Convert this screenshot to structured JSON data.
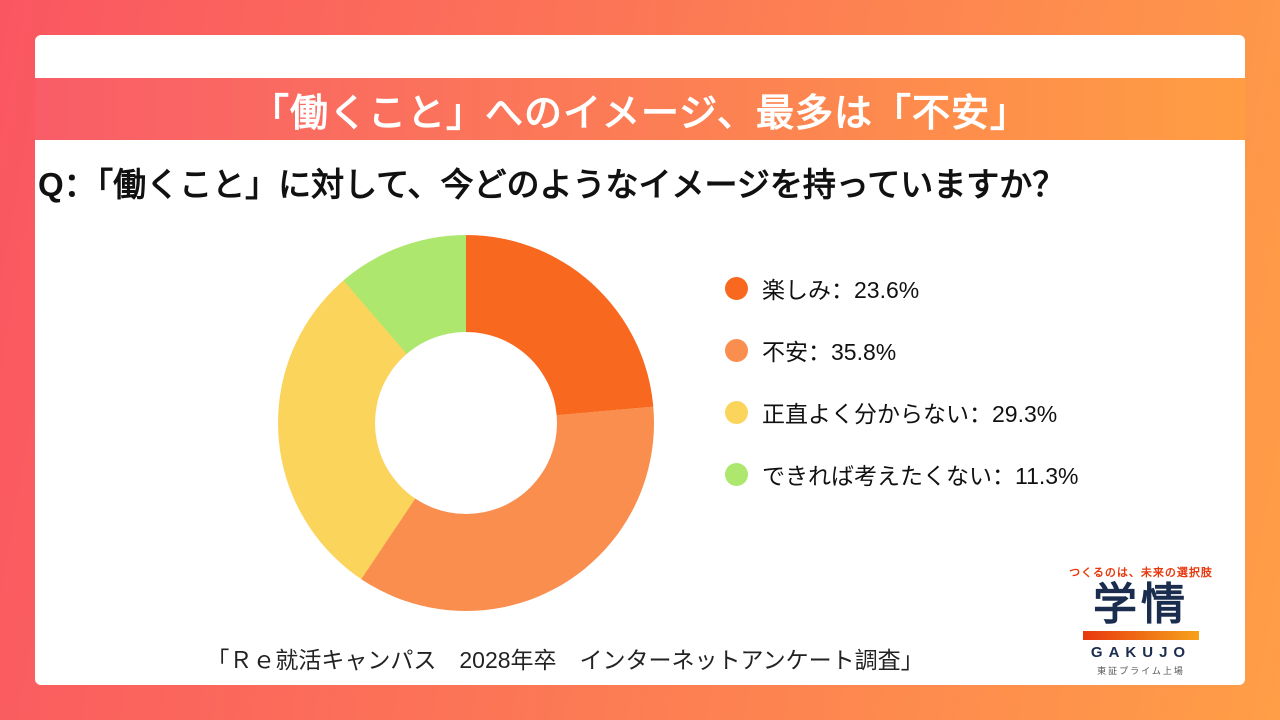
{
  "banner": {
    "title": "「働くこと」へのイメージ、最多は「不安」"
  },
  "question": "Q：「働くこと」に対して、今どのようなイメージを持っていますか？",
  "chart_data": {
    "type": "pie",
    "donut": true,
    "title": "「働くこと」へのイメージ、最多は「不安」",
    "labels": [
      "楽しみ",
      "不安",
      "正直よく分からない",
      "できれば考えたくない"
    ],
    "values": [
      23.6,
      35.8,
      29.3,
      11.3
    ],
    "colors": [
      "#f8681f",
      "#f98e4e",
      "#fbd45c",
      "#aee76e"
    ],
    "legend_labels": [
      "楽しみ：23.6%",
      "不安：35.8%",
      "正直よく分からない：29.3%",
      "できれば考えたくない：11.3%"
    ],
    "legend_position": "right",
    "start_angle_deg": 0,
    "direction": "clockwise"
  },
  "caption": "「Ｒｅ就活キャンパス　2028年卒　インターネットアンケート調査」",
  "logo": {
    "tagline": "つくるのは、未来の選択肢",
    "name": "学情",
    "romaji": "GAKUJO",
    "listing": "東証プライム上場"
  }
}
